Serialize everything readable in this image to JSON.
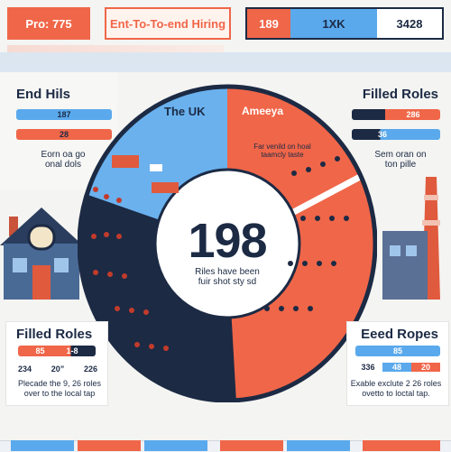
{
  "header": {
    "box1": "Pro: 775",
    "box2": "Ent-To-To-end Hiring",
    "bar_left": "189",
    "bar_mid": "1XK",
    "bar_right": "3428"
  },
  "left_top": {
    "title": "End Hils",
    "bar1": "187",
    "bar2": "28",
    "caption": "Eorn oa go\nonal dols"
  },
  "right_top": {
    "title": "Filled Roles",
    "bar1": "286",
    "bar2": "36",
    "caption": "Sem oran on\nton pille"
  },
  "left_bottom": {
    "title": "Filled Roles",
    "bar1a": "85",
    "bar1b": "1-8",
    "v1": "234",
    "v2": "20”",
    "v3": "226",
    "caption": "Plecade the 9, 26 roles\nover to the local tap"
  },
  "right_bottom": {
    "title": "Eeed Ropes",
    "bar1": "85",
    "v1": "336",
    "v2": "48",
    "v3": "20",
    "caption": "Exable exclute 2 26 roles\novetto to loctal tap."
  },
  "circle": {
    "label_uk": "The UK",
    "label_am": "Ameeya",
    "am_sub": "Far venild on hoal\ntaamcly taste",
    "center_number": "198",
    "center_caption": "Riles have been\nfuir shot sty sd"
  },
  "colors": {
    "navy": "#1c2a44",
    "blue": "#5aa9ec",
    "orange": "#f06649",
    "light_blue": "#dbe6f1"
  }
}
